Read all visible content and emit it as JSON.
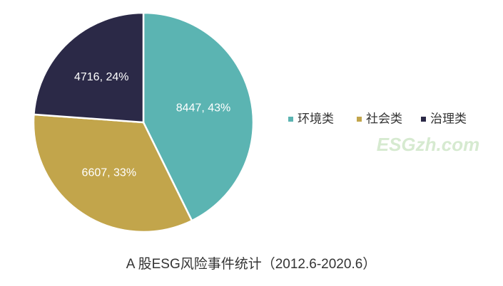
{
  "chart_data": {
    "type": "pie",
    "title": "A 股ESG风险事件统计（2012.6-2020.6）",
    "categories": [
      "环境类",
      "社会类",
      "治理类"
    ],
    "values": [
      8447,
      6607,
      4716
    ],
    "value_labels": [
      "8447, 43%",
      "6607, 33%",
      "4716, 24%"
    ],
    "colors": [
      "#5bb4b2",
      "#c2a54b",
      "#2b2947"
    ],
    "legend": "right",
    "watermark": "ESGzh.com"
  }
}
